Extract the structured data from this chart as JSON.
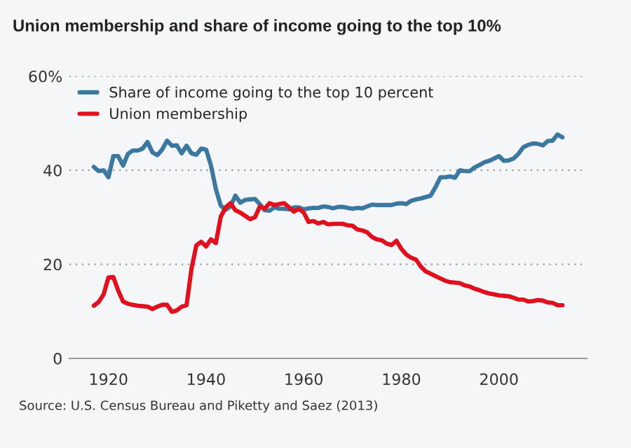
{
  "chart_data": {
    "type": "line",
    "title": "Union membership and share of income going to the top 10%",
    "annotations": [
      "Source: U.S. Census Bureau and Piketty and Saez (2013)"
    ],
    "x": [
      1917,
      1918,
      1919,
      1920,
      1921,
      1922,
      1923,
      1924,
      1925,
      1926,
      1927,
      1928,
      1929,
      1930,
      1931,
      1932,
      1933,
      1934,
      1935,
      1936,
      1937,
      1938,
      1939,
      1940,
      1941,
      1942,
      1943,
      1944,
      1945,
      1946,
      1947,
      1948,
      1949,
      1950,
      1951,
      1952,
      1953,
      1954,
      1955,
      1956,
      1957,
      1958,
      1959,
      1960,
      1961,
      1962,
      1963,
      1964,
      1965,
      1966,
      1967,
      1968,
      1969,
      1970,
      1971,
      1972,
      1973,
      1974,
      1975,
      1976,
      1977,
      1978,
      1979,
      1980,
      1981,
      1982,
      1983,
      1984,
      1985,
      1986,
      1987,
      1988,
      1989,
      1990,
      1991,
      1992,
      1993,
      1994,
      1995,
      1996,
      1997,
      1998,
      1999,
      2000,
      2001,
      2002,
      2003,
      2004,
      2005,
      2006,
      2007,
      2008,
      2009,
      2010,
      2011,
      2012,
      2013
    ],
    "series": [
      {
        "name": "Share of income going to the top 10 percent",
        "color": "#3b78a0",
        "values": [
          40.7,
          39.8,
          40,
          38.5,
          43,
          43,
          41,
          43.5,
          44.2,
          44.2,
          44.6,
          46,
          43.8,
          43.2,
          44.4,
          46.3,
          45.2,
          45.3,
          43.6,
          45.2,
          43.6,
          43.3,
          44.6,
          44.4,
          41,
          36,
          32.5,
          31.6,
          32.3,
          34.6,
          33.1,
          33.7,
          33.8,
          33.9,
          32.8,
          31.5,
          31.4,
          32.1,
          31.8,
          31.8,
          31.7,
          32.1,
          32.1,
          31.7,
          31.9,
          32,
          32,
          32.3,
          32.2,
          31.9,
          32.2,
          32.2,
          32,
          31.8,
          32,
          31.9,
          32.3,
          32.7,
          32.6,
          32.6,
          32.6,
          32.6,
          32.9,
          33,
          32.8,
          33.5,
          33.8,
          34,
          34.3,
          34.6,
          36.4,
          38.5,
          38.5,
          38.7,
          38.4,
          40,
          39.8,
          39.8,
          40.6,
          41.1,
          41.7,
          42,
          42.5,
          43,
          42,
          42.1,
          42.5,
          43.5,
          44.9,
          45.4,
          45.7,
          45.6,
          45.3,
          46.2,
          46.3,
          47.6,
          47
        ]
      },
      {
        "name": "Union membership",
        "color": "#e0101c",
        "values": [
          11.2,
          12,
          13.6,
          17.2,
          17.3,
          14.4,
          12.1,
          11.6,
          11.4,
          11.2,
          11.1,
          11,
          10.5,
          11,
          11.4,
          11.4,
          9.9,
          10.2,
          11,
          11.3,
          19,
          24,
          24.8,
          23.8,
          25.3,
          24.5,
          30.1,
          32.1,
          33,
          31.5,
          31,
          30.3,
          29.6,
          30,
          32.3,
          31.8,
          33,
          32.6,
          32.8,
          33,
          32.1,
          31.2,
          31.8,
          31,
          29,
          29.2,
          28.7,
          29,
          28.5,
          28.6,
          28.6,
          28.6,
          28.3,
          28.2,
          27.4,
          27.2,
          26.8,
          25.8,
          25.3,
          25.1,
          24.4,
          24.1,
          25,
          23.3,
          22.1,
          21.4,
          21,
          19.5,
          18.5,
          18,
          17.5,
          17,
          16.5,
          16.2,
          16.1,
          16,
          15.5,
          15.3,
          14.8,
          14.5,
          14.1,
          13.8,
          13.6,
          13.4,
          13.3,
          13.2,
          12.9,
          12.5,
          12.5,
          12.1,
          12.2,
          12.4,
          12.3,
          11.9,
          11.8,
          11.3,
          11.3
        ]
      }
    ],
    "xlim": [
      1912,
      2018
    ],
    "xticks": [
      1920,
      1940,
      1960,
      1980,
      2000
    ],
    "ylim": [
      0,
      60
    ],
    "yticks": [
      0,
      20,
      40,
      {
        "value": 60,
        "label": "60%"
      }
    ],
    "grid": "y",
    "legend": "top left",
    "marker": "none",
    "line_style": "solid"
  }
}
